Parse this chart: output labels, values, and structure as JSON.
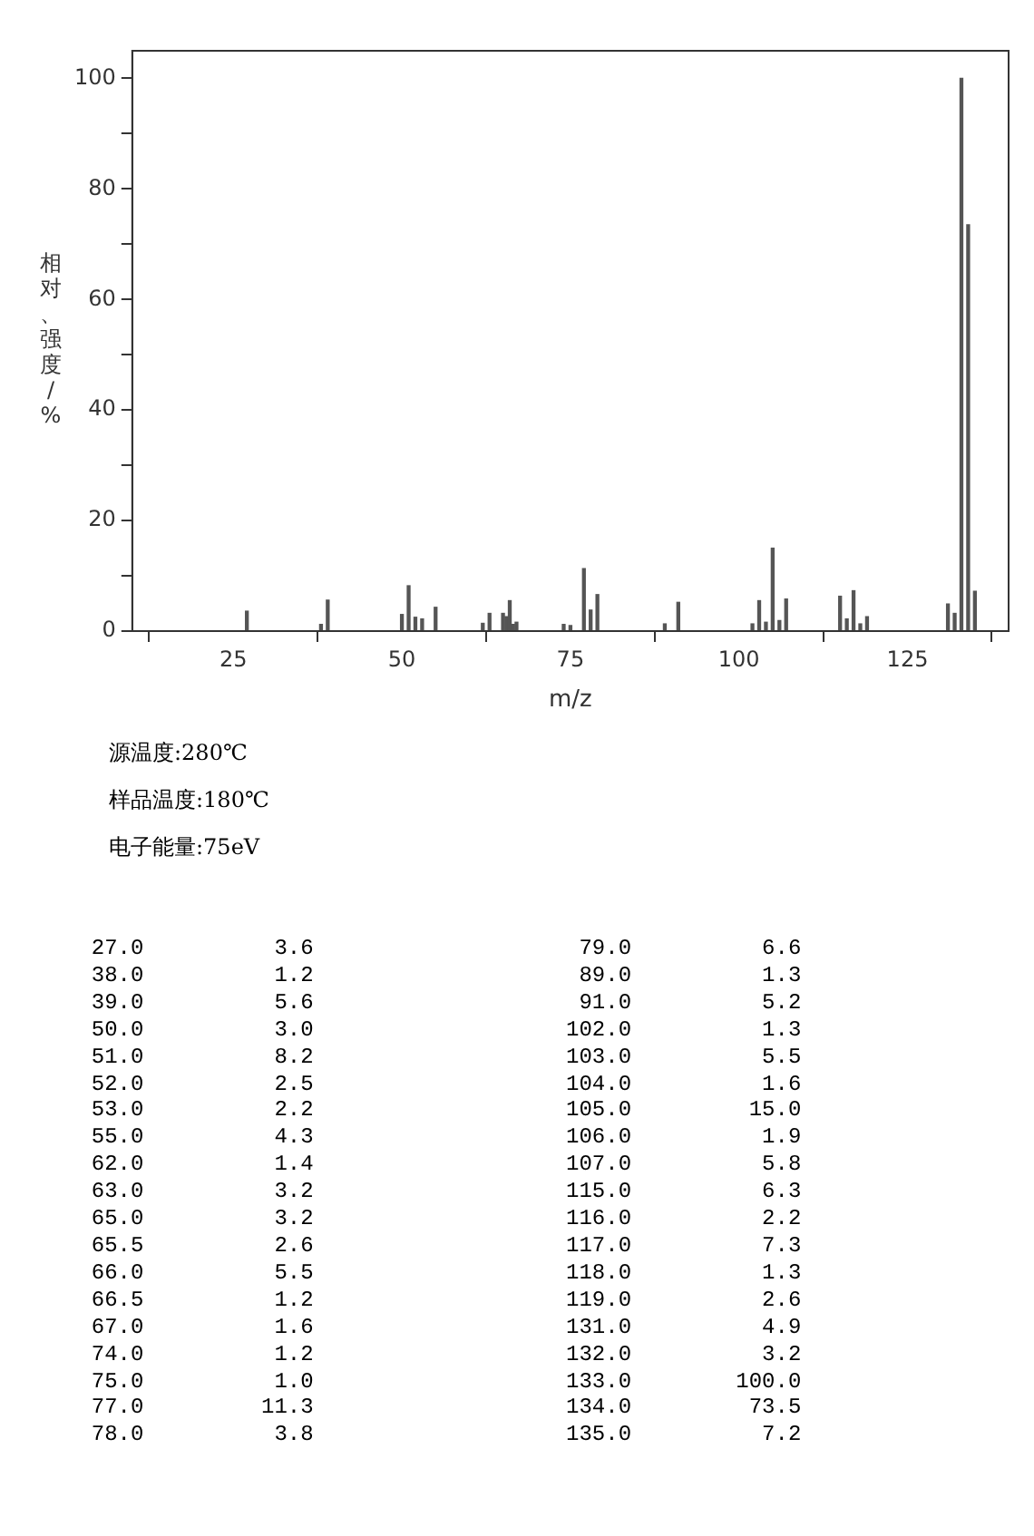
{
  "chart_data": {
    "type": "bar",
    "xlabel": "m/z",
    "ylabel": "相对、强度/%",
    "x": [
      27,
      38,
      39,
      50,
      51,
      52,
      53,
      55,
      62,
      63,
      65,
      65.5,
      66,
      66.5,
      67,
      74,
      75,
      77,
      78,
      79,
      89,
      91,
      102,
      103,
      104,
      105,
      106,
      107,
      115,
      116,
      117,
      118,
      119,
      131,
      132,
      133,
      134,
      135
    ],
    "values": [
      3.6,
      1.2,
      5.6,
      3.0,
      8.2,
      2.5,
      2.2,
      4.3,
      1.4,
      3.2,
      3.2,
      2.6,
      5.5,
      1.2,
      1.6,
      1.2,
      1.0,
      11.3,
      3.8,
      6.6,
      1.3,
      5.2,
      1.3,
      5.5,
      1.6,
      15.0,
      1.9,
      5.8,
      6.3,
      2.2,
      7.3,
      1.3,
      2.6,
      4.9,
      3.2,
      100.0,
      73.5,
      7.2
    ],
    "color": "#555555",
    "xlim": [
      10,
      140
    ],
    "xticks": [
      25,
      50,
      75,
      100,
      125
    ],
    "ylim": [
      0,
      105
    ],
    "yticks": [
      0,
      {
        "value": 10,
        "label": null
      },
      20,
      {
        "value": 30,
        "label": null
      },
      40,
      {
        "value": 50,
        "label": null
      },
      60,
      {
        "value": 70,
        "label": null
      },
      80,
      {
        "value": 90,
        "label": null
      },
      100
    ],
    "annotations": [
      "源温度:280℃",
      "样品温度:180℃",
      "电子能量:75eV",
      "27.0 3.6",
      "38.0 1.2",
      "39.0 5.6",
      "50.0 3.0",
      "51.0 8.2",
      "52.0 2.5",
      "53.0 2.2",
      "55.0 4.3",
      "62.0 1.4",
      "63.0 3.2",
      "65.0 3.2",
      "65.5 2.6",
      "66.0 5.5",
      "66.5 1.2",
      "67.0 1.6",
      "74.0 1.2",
      "75.0 1.0",
      "77.0 11.3",
      "78.0 3.8",
      "79.0 6.6",
      "89.0 1.3",
      "91.0 5.2",
      "102.0 1.3",
      "103.0 5.5",
      "104.0 1.6",
      "105.0 15.0",
      "106.0 1.9",
      "107.0 5.8",
      "115.0 6.3",
      "116.0 2.2",
      "117.0 7.3",
      "118.0 1.3",
      "119.0 2.6",
      "131.0 4.9",
      "132.0 3.2",
      "133.0 100.0",
      "134.0 73.5",
      "135.0 7.2"
    ]
  }
}
